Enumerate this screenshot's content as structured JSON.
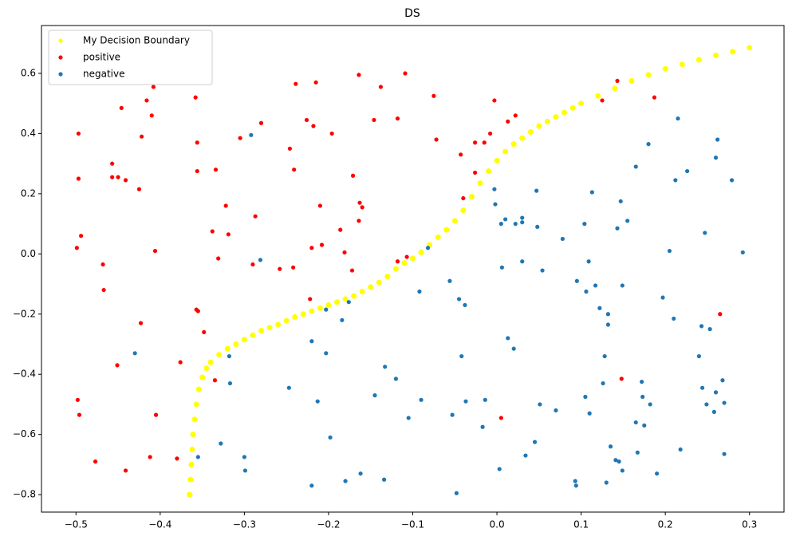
{
  "chart_data": {
    "type": "scatter",
    "title": "DS",
    "xlim": [
      -0.541,
      0.341
    ],
    "ylim": [
      -0.858,
      0.759
    ],
    "xticks": [
      {
        "value": -0.5,
        "label": "−0.5"
      },
      {
        "value": -0.4,
        "label": "−0.4"
      },
      {
        "value": -0.3,
        "label": "−0.3"
      },
      {
        "value": -0.2,
        "label": "−0.2"
      },
      {
        "value": -0.1,
        "label": "−0.1"
      },
      {
        "value": 0,
        "label": "0.0"
      },
      0.1,
      0.2,
      0.3
    ],
    "yticks": [
      {
        "value": -0.8,
        "label": "−0.8"
      },
      {
        "value": -0.6,
        "label": "−0.6"
      },
      {
        "value": -0.4,
        "label": "−0.4"
      },
      {
        "value": -0.2,
        "label": "−0.2"
      },
      {
        "value": 0,
        "label": "0.0"
      },
      0.2,
      0.4,
      0.6
    ],
    "legend": "upper left",
    "grid": false,
    "series": [
      {
        "name": "My Decision Boundary",
        "color": "#ffff00",
        "x": [
          -0.365,
          -0.364,
          -0.363,
          -0.362,
          -0.361,
          -0.359,
          -0.357,
          -0.354,
          -0.35,
          -0.345,
          -0.34,
          -0.33,
          -0.32,
          -0.31,
          -0.3,
          -0.29,
          -0.28,
          -0.27,
          -0.26,
          -0.25,
          -0.24,
          -0.23,
          -0.22,
          -0.21,
          -0.2,
          -0.19,
          -0.18,
          -0.17,
          -0.16,
          -0.15,
          -0.14,
          -0.13,
          -0.12,
          -0.11,
          -0.1,
          -0.09,
          -0.08,
          -0.07,
          -0.06,
          -0.05,
          -0.04,
          -0.03,
          -0.02,
          -0.01,
          0,
          0.01,
          0.02,
          0.03,
          0.04,
          0.05,
          0.06,
          0.07,
          0.08,
          0.09,
          0.1,
          0.12,
          0.14,
          0.16,
          0.18,
          0.2,
          0.22,
          0.24,
          0.26,
          0.28,
          0.3
        ],
        "values": [
          -0.8,
          -0.75,
          -0.7,
          -0.65,
          -0.6,
          -0.55,
          -0.5,
          -0.45,
          -0.41,
          -0.38,
          -0.36,
          -0.335,
          -0.315,
          -0.3,
          -0.285,
          -0.27,
          -0.255,
          -0.245,
          -0.235,
          -0.222,
          -0.21,
          -0.2,
          -0.19,
          -0.18,
          -0.17,
          -0.16,
          -0.15,
          -0.14,
          -0.125,
          -0.11,
          -0.095,
          -0.075,
          -0.05,
          -0.03,
          -0.015,
          0.005,
          0.03,
          0.055,
          0.08,
          0.11,
          0.145,
          0.19,
          0.235,
          0.275,
          0.31,
          0.34,
          0.365,
          0.385,
          0.405,
          0.425,
          0.44,
          0.455,
          0.47,
          0.485,
          0.5,
          0.525,
          0.55,
          0.575,
          0.595,
          0.615,
          0.63,
          0.645,
          0.66,
          0.672,
          0.685
        ]
      },
      {
        "name": "positive",
        "color": "#ff0000",
        "x": [
          -0.497,
          -0.497,
          -0.494,
          -0.499,
          -0.498,
          -0.496,
          -0.477,
          -0.468,
          -0.467,
          -0.457,
          -0.457,
          -0.45,
          -0.446,
          -0.441,
          -0.451,
          -0.441,
          -0.425,
          -0.422,
          -0.423,
          -0.416,
          -0.41,
          -0.408,
          -0.406,
          -0.405,
          -0.412,
          -0.38,
          -0.376,
          -0.358,
          -0.356,
          -0.356,
          -0.357,
          -0.355,
          -0.348,
          -0.334,
          -0.331,
          -0.338,
          -0.335,
          -0.322,
          -0.319,
          -0.305,
          -0.29,
          -0.287,
          -0.28,
          -0.258,
          -0.246,
          -0.242,
          -0.241,
          -0.239,
          -0.226,
          -0.222,
          -0.22,
          -0.218,
          -0.215,
          -0.21,
          -0.208,
          -0.196,
          -0.186,
          -0.181,
          -0.172,
          -0.171,
          -0.164,
          -0.164,
          -0.163,
          -0.16,
          -0.146,
          -0.138,
          -0.118,
          -0.118,
          -0.109,
          -0.107,
          -0.075,
          -0.072,
          -0.043,
          -0.04,
          -0.026,
          -0.026,
          -0.015,
          -0.008,
          -0.003,
          0.005,
          0.013,
          0.022,
          0.125,
          0.143,
          0.148,
          0.187,
          0.265
        ],
        "values": [
          0.4,
          0.25,
          0.06,
          0.02,
          -0.485,
          -0.535,
          -0.69,
          -0.035,
          -0.12,
          0.3,
          0.255,
          0.255,
          0.485,
          0.245,
          -0.37,
          -0.72,
          0.215,
          0.39,
          -0.23,
          0.51,
          0.46,
          0.555,
          0.01,
          -0.535,
          -0.675,
          -0.68,
          -0.36,
          0.52,
          0.37,
          0.275,
          -0.185,
          -0.19,
          -0.26,
          0.28,
          -0.015,
          0.075,
          -0.42,
          0.16,
          0.065,
          0.385,
          -0.035,
          0.125,
          0.435,
          -0.05,
          0.35,
          -0.045,
          0.28,
          0.565,
          0.445,
          -0.15,
          0.02,
          0.425,
          0.57,
          0.16,
          0.03,
          0.4,
          0.08,
          0.005,
          -0.055,
          0.26,
          0.595,
          0.11,
          0.17,
          0.155,
          0.445,
          0.555,
          0.45,
          -0.025,
          0.6,
          -0.01,
          0.525,
          0.38,
          0.33,
          0.185,
          0.27,
          0.37,
          0.37,
          0.4,
          0.51,
          -0.545,
          0.44,
          0.46,
          0.51,
          0.575,
          -0.415,
          0.52,
          -0.2
        ]
      },
      {
        "name": "negative",
        "color": "#1f77b4",
        "x": [
          -0.43,
          -0.355,
          -0.328,
          -0.318,
          -0.317,
          -0.3,
          -0.299,
          -0.292,
          -0.281,
          -0.247,
          -0.22,
          -0.22,
          -0.213,
          -0.203,
          -0.203,
          -0.198,
          -0.184,
          -0.18,
          -0.176,
          -0.162,
          -0.145,
          -0.133,
          -0.134,
          -0.12,
          -0.105,
          -0.092,
          -0.09,
          -0.082,
          -0.056,
          -0.053,
          -0.048,
          -0.045,
          -0.042,
          -0.038,
          -0.037,
          -0.017,
          -0.014,
          -0.003,
          -0.002,
          0.003,
          0.005,
          0.006,
          0.01,
          0.013,
          0.02,
          0.022,
          0.03,
          0.03,
          0.03,
          0.034,
          0.045,
          0.047,
          0.048,
          0.051,
          0.054,
          0.07,
          0.078,
          0.093,
          0.094,
          0.095,
          0.104,
          0.105,
          0.106,
          0.109,
          0.11,
          0.113,
          0.117,
          0.122,
          0.126,
          0.128,
          0.13,
          0.132,
          0.132,
          0.135,
          0.141,
          0.143,
          0.145,
          0.147,
          0.149,
          0.149,
          0.155,
          0.165,
          0.165,
          0.167,
          0.172,
          0.173,
          0.175,
          0.18,
          0.182,
          0.19,
          0.197,
          0.205,
          0.21,
          0.212,
          0.215,
          0.218,
          0.226,
          0.24,
          0.243,
          0.244,
          0.247,
          0.249,
          0.253,
          0.258,
          0.26,
          0.26,
          0.262,
          0.268,
          0.27,
          0.27,
          0.279,
          0.292
        ],
        "values": [
          -0.33,
          -0.675,
          -0.63,
          -0.34,
          -0.43,
          -0.675,
          -0.72,
          0.395,
          -0.02,
          -0.445,
          -0.29,
          -0.77,
          -0.49,
          -0.185,
          -0.33,
          -0.61,
          -0.22,
          -0.755,
          -0.16,
          -0.73,
          -0.47,
          -0.375,
          -0.75,
          -0.415,
          -0.545,
          -0.125,
          -0.485,
          0.02,
          -0.09,
          -0.535,
          -0.795,
          -0.15,
          -0.34,
          -0.17,
          -0.49,
          -0.575,
          -0.485,
          0.215,
          0.165,
          -0.715,
          0.1,
          -0.045,
          0.115,
          -0.28,
          -0.315,
          0.1,
          0.12,
          0.105,
          -0.025,
          -0.67,
          -0.625,
          0.21,
          0.09,
          -0.5,
          -0.055,
          -0.52,
          0.05,
          -0.755,
          -0.77,
          -0.09,
          0.1,
          -0.475,
          -0.125,
          -0.025,
          -0.53,
          0.205,
          -0.105,
          -0.18,
          -0.43,
          -0.34,
          -0.76,
          -0.2,
          -0.235,
          -0.64,
          -0.685,
          0.085,
          -0.69,
          0.175,
          -0.105,
          -0.72,
          0.11,
          0.29,
          -0.56,
          -0.66,
          -0.425,
          -0.475,
          -0.57,
          0.365,
          -0.5,
          -0.73,
          -0.145,
          0.01,
          -0.215,
          0.245,
          0.45,
          -0.65,
          0.275,
          -0.34,
          -0.24,
          -0.445,
          0.07,
          -0.5,
          -0.25,
          -0.525,
          0.32,
          -0.46,
          0.38,
          -0.42,
          -0.495,
          -0.665,
          0.245,
          0.005
        ]
      }
    ]
  }
}
